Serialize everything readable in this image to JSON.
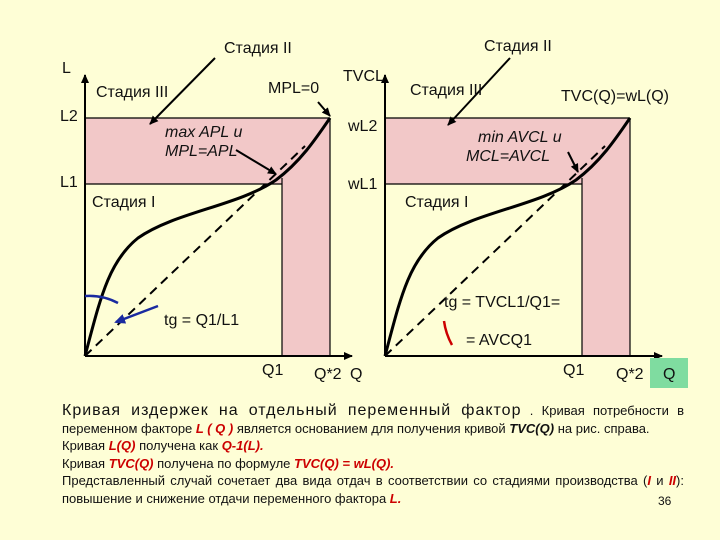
{
  "colors": {
    "background": "#fefed6",
    "shade": "#f2c8c8",
    "curve": "#000000",
    "arrow_blue": "#1a2aa0",
    "arc_red": "#cc0000",
    "qbox": "#7fdca0"
  },
  "left_graph": {
    "axis_y": "L",
    "l2": "L2",
    "l1": "L1",
    "q1": "Q1",
    "q2star": "Q*2",
    "q": "Q",
    "stage2": "Стадия II",
    "stage3": "Стадия III",
    "stage1": "Стадия I",
    "mpl_zero": "MPL=0",
    "max_ap_line1": "max APL и",
    "max_ap_line2": "MPL=APL",
    "tg_label": "tg = Q1/L1"
  },
  "right_graph": {
    "axis_y": "TVCL",
    "wl2": "wL2",
    "wl1": "wL1",
    "q1": "Q1",
    "q2star": "Q*2",
    "q": "Q",
    "stage2": "Стадия II",
    "stage3": "Стадия III",
    "stage1": "Стадия I",
    "tvc_formula": "TVC(Q)=wL(Q)",
    "min_avc_line1": "min AVCL и",
    "min_avc_line2": "MCL=AVCL",
    "tg_line1": "tg = TVCL1/Q1=",
    "tg_line2": "= AVCQ1"
  },
  "caption": {
    "heading": "Кривая издержек на отдельный переменный фактор",
    "p1_a": ". Кривая потребности в переменном факторе",
    "p1_b": "L ( Q )",
    "p1_c": "является основанием для получения кривой",
    "p1_d": "TVC(Q)",
    "p1_e": "на рис. справа.",
    "p2_a": "Кривая",
    "p2_b": "L(Q)",
    "p2_c": "получена как",
    "p2_d": "Q-1(L).",
    "p3_a": "Кривая",
    "p3_b": "TVC(Q)",
    "p3_c": "получена по формуле",
    "p3_d": "TVC(Q) = wL(Q).",
    "p4_a": "Представленный случай сочетает два вида отдач в соответствии со стадиями производства (",
    "p4_b": "I",
    "p4_c": "и",
    "p4_d": "II",
    "p4_e": "): повышение и снижение отдачи переменного фактора",
    "p4_f": "L."
  },
  "page_number": "36"
}
